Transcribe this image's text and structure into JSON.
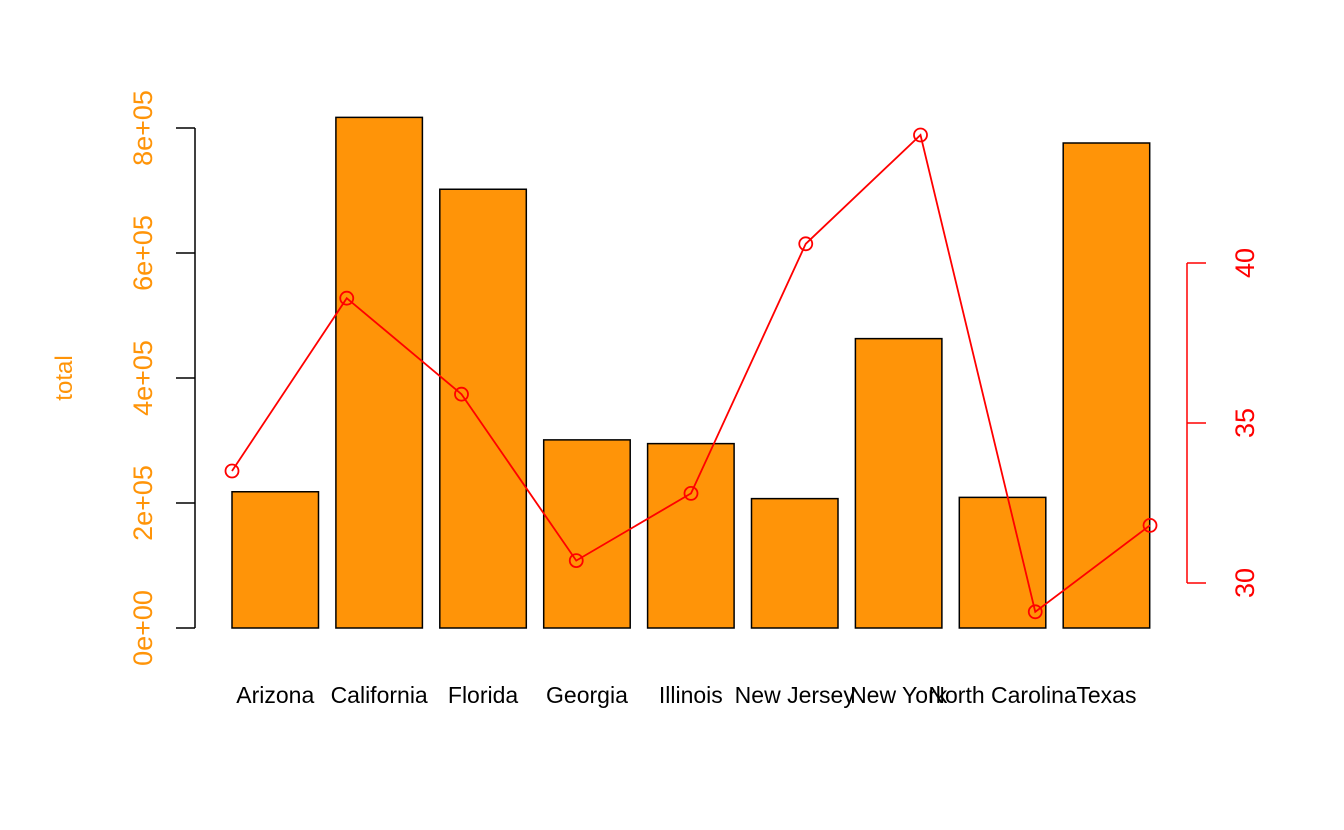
{
  "chart_data": {
    "type": "bar",
    "title": "",
    "categories": [
      "Arizona",
      "California",
      "Florida",
      "Georgia",
      "Illinois",
      "New Jersey",
      "New York",
      "North Carolina",
      "Texas"
    ],
    "series": [
      {
        "type": "bar",
        "axis": "left",
        "values": [
          218000,
          817000,
          702000,
          301000,
          295000,
          207000,
          463000,
          209000,
          776000
        ],
        "color": "#FF9408"
      },
      {
        "type": "line",
        "axis": "right",
        "values": [
          33.5,
          38.9,
          35.9,
          30.7,
          32.8,
          40.6,
          44.0,
          29.1,
          31.8
        ],
        "color": "#FF0000",
        "marker": "open-circle"
      }
    ],
    "ylabel": "total",
    "ylabel_color": "#FF9408",
    "ylim": [
      0,
      800000
    ],
    "yticks": [
      "0e+00",
      "2e+05",
      "4e+05",
      "6e+05",
      "8e+05"
    ],
    "yticks_color": "#FF9408",
    "y2lim": [
      30,
      40
    ],
    "y2ticks": [
      "30",
      "35",
      "40"
    ],
    "y2_color": "#FF0000",
    "grid": false,
    "legend": "none"
  }
}
